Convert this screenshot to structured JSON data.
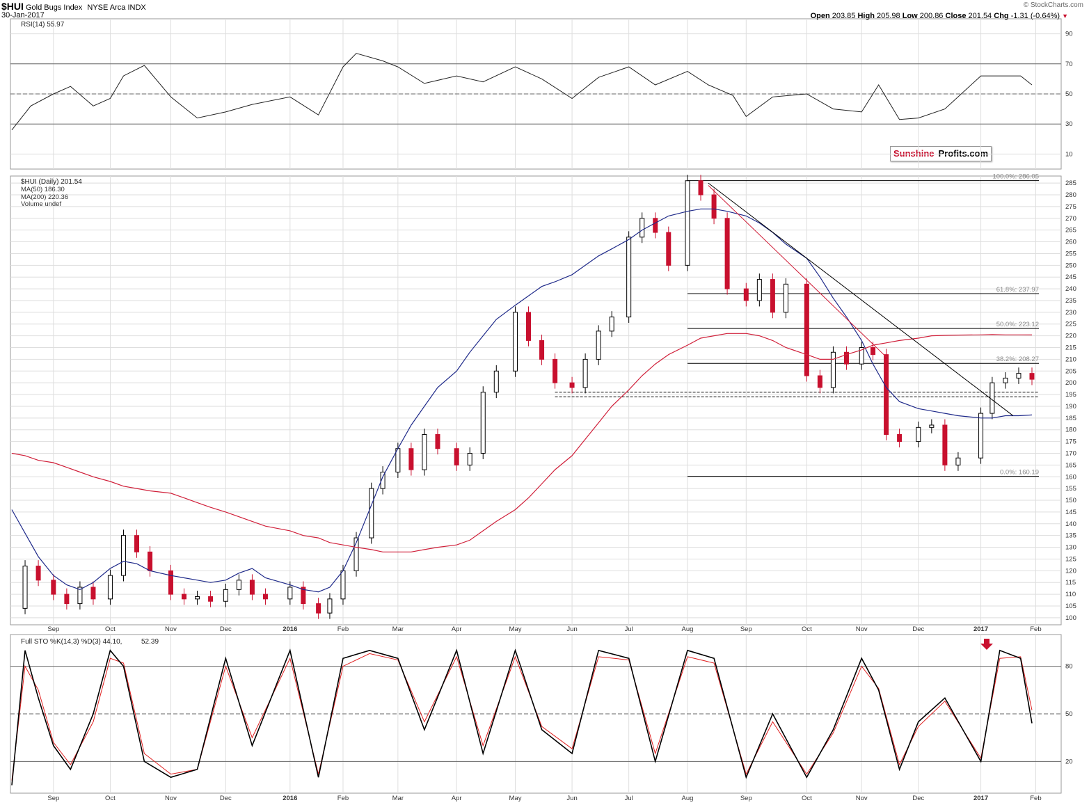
{
  "header": {
    "symbol": "$HUI",
    "name": "Gold Bugs Index",
    "exchange": "NYSE Arca",
    "type": "INDX",
    "date": "30-Jan-2017",
    "watermark": "© StockCharts.com",
    "open_label": "Open",
    "open": "203.85",
    "high_label": "High",
    "high": "205.98",
    "low_label": "Low",
    "low": "200.86",
    "close_label": "Close",
    "close": "201.54",
    "chg_label": "Chg",
    "chg": "-1.31 (-0.64%)"
  },
  "logo": {
    "part1": "Sunshine",
    "part2": "Profits.com"
  },
  "colors": {
    "up": "#000000",
    "down": "#c8102e",
    "ma50": "#1f2a8a",
    "ma200": "#d0203a",
    "grid": "#dedede",
    "stoch_d": "#e02020"
  },
  "chart_data": [
    {
      "type": "line",
      "panel": "rsi",
      "title": "RSI(14) 55.97",
      "ylim": [
        0,
        100
      ],
      "yticks": [
        10,
        30,
        50,
        70,
        90
      ],
      "reference_lines": [
        30,
        50,
        70
      ],
      "x": [
        "2015-08-10",
        "2015-08-20",
        "2015-09-01",
        "2015-09-10",
        "2015-09-22",
        "2015-10-01",
        "2015-10-08",
        "2015-10-19",
        "2015-11-02",
        "2015-11-16",
        "2015-12-01",
        "2015-12-15",
        "2016-01-04",
        "2016-01-19",
        "2016-02-01",
        "2016-02-08",
        "2016-02-22",
        "2016-03-01",
        "2016-03-15",
        "2016-04-01",
        "2016-04-15",
        "2016-05-02",
        "2016-05-16",
        "2016-06-01",
        "2016-06-15",
        "2016-07-01",
        "2016-07-15",
        "2016-08-01",
        "2016-08-12",
        "2016-08-25",
        "2016-09-01",
        "2016-09-15",
        "2016-10-03",
        "2016-10-17",
        "2016-11-01",
        "2016-11-10",
        "2016-11-21",
        "2016-12-01",
        "2016-12-15",
        "2017-01-03",
        "2017-01-13",
        "2017-01-24",
        "2017-01-30"
      ],
      "values": [
        26,
        42,
        50,
        55,
        42,
        47,
        62,
        69,
        48,
        34,
        38,
        43,
        48,
        36,
        68,
        77,
        72,
        68,
        57,
        62,
        58,
        68,
        60,
        47,
        61,
        68,
        56,
        65,
        56,
        49,
        35,
        48,
        50,
        40,
        38,
        56,
        33,
        34,
        40,
        62,
        62,
        62,
        56
      ]
    },
    {
      "type": "candlestick",
      "panel": "price",
      "title": "$HUI (Daily) 201.54",
      "legend": [
        "$HUI (Daily) 201.54",
        "MA(50) 186.30",
        "MA(200) 220.36",
        "Volume undef"
      ],
      "ylim": [
        97,
        288
      ],
      "yticks": [
        100,
        105,
        110,
        115,
        120,
        125,
        130,
        135,
        140,
        145,
        150,
        155,
        160,
        165,
        170,
        175,
        180,
        185,
        190,
        195,
        200,
        205,
        210,
        215,
        220,
        225,
        230,
        235,
        240,
        245,
        250,
        255,
        260,
        265,
        270,
        275,
        280,
        285
      ],
      "xlabels": [
        "Sep",
        "Oct",
        "Nov",
        "Dec",
        "2016",
        "Feb",
        "Mar",
        "Apr",
        "May",
        "Jun",
        "Jul",
        "Aug",
        "Sep",
        "Oct",
        "Nov",
        "Dec",
        "2017",
        "Feb"
      ],
      "x": [
        "2015-08-10",
        "2015-08-17",
        "2015-08-24",
        "2015-09-01",
        "2015-09-08",
        "2015-09-15",
        "2015-09-22",
        "2015-10-01",
        "2015-10-08",
        "2015-10-15",
        "2015-10-22",
        "2015-11-02",
        "2015-11-09",
        "2015-11-16",
        "2015-11-23",
        "2015-12-01",
        "2015-12-08",
        "2015-12-15",
        "2015-12-22",
        "2016-01-04",
        "2016-01-11",
        "2016-01-19",
        "2016-01-25",
        "2016-02-01",
        "2016-02-08",
        "2016-02-16",
        "2016-02-22",
        "2016-03-01",
        "2016-03-08",
        "2016-03-15",
        "2016-03-22",
        "2016-04-01",
        "2016-04-08",
        "2016-04-15",
        "2016-04-22",
        "2016-05-02",
        "2016-05-09",
        "2016-05-16",
        "2016-05-23",
        "2016-06-01",
        "2016-06-08",
        "2016-06-15",
        "2016-06-22",
        "2016-07-01",
        "2016-07-08",
        "2016-07-15",
        "2016-07-22",
        "2016-08-01",
        "2016-08-08",
        "2016-08-15",
        "2016-08-22",
        "2016-09-01",
        "2016-09-08",
        "2016-09-15",
        "2016-09-22",
        "2016-10-03",
        "2016-10-10",
        "2016-10-17",
        "2016-10-24",
        "2016-11-01",
        "2016-11-07",
        "2016-11-14",
        "2016-11-21",
        "2016-12-01",
        "2016-12-08",
        "2016-12-15",
        "2016-12-22",
        "2017-01-03",
        "2017-01-09",
        "2017-01-16",
        "2017-01-23",
        "2017-01-30"
      ],
      "close": [
        104,
        122,
        116,
        110,
        106,
        113,
        108,
        118,
        135,
        128,
        120,
        110,
        108,
        109,
        107,
        112,
        116,
        110,
        108,
        113,
        106,
        102,
        108,
        120,
        134,
        155,
        162,
        172,
        163,
        178,
        172,
        165,
        170,
        196,
        205,
        230,
        218,
        210,
        200,
        198,
        210,
        222,
        228,
        262,
        270,
        264,
        250,
        286,
        280,
        270,
        240,
        235,
        244,
        230,
        242,
        203,
        198,
        213,
        208,
        215,
        212,
        178,
        175,
        181,
        182,
        165,
        168,
        187,
        200,
        202,
        204,
        201.5
      ],
      "ma50": [
        146,
        136,
        126,
        118,
        114,
        112,
        115,
        121,
        124,
        123,
        120,
        118,
        117,
        116,
        115,
        116,
        119,
        121,
        117,
        114,
        112,
        111,
        113,
        120,
        132,
        148,
        160,
        172,
        182,
        190,
        198,
        205,
        213,
        220,
        227,
        233,
        237,
        241,
        243,
        246,
        250,
        254,
        257,
        261,
        265,
        268,
        271,
        273,
        274,
        274,
        273,
        271,
        268,
        264,
        259,
        253,
        245,
        236,
        228,
        218,
        208,
        198,
        192,
        189,
        188,
        187,
        186,
        185,
        185,
        186,
        186,
        186.3
      ],
      "ma200": [
        170,
        169,
        167,
        166,
        164,
        162,
        160,
        158,
        156,
        155,
        154,
        153,
        151,
        149,
        147,
        145,
        143,
        141,
        139,
        137,
        135,
        134,
        132,
        131,
        130,
        129,
        128,
        128,
        128,
        129,
        130,
        131,
        133,
        137,
        141,
        146,
        151,
        157,
        163,
        169,
        176,
        183,
        190,
        197,
        203,
        208,
        212,
        216,
        219,
        220,
        221,
        221,
        220,
        218,
        215,
        212,
        210,
        210,
        212,
        214,
        216,
        217,
        218,
        219,
        220,
        220.2,
        220.3,
        220.4,
        220.5,
        220.4,
        220.4,
        220.36
      ],
      "fibonacci": [
        {
          "label": "100.0%: 286.05",
          "value": 286.05
        },
        {
          "label": "61.8%: 237.97",
          "value": 237.97
        },
        {
          "label": "50.0%: 223.12",
          "value": 223.12
        },
        {
          "label": "38.2%: 208.27",
          "value": 208.27
        },
        {
          "label": "0.0%: 160.19",
          "value": 160.19
        }
      ],
      "support_dashed": [
        196,
        194
      ],
      "trendlines": [
        {
          "name": "black-resistance",
          "from": [
            "2016-08-12",
            285
          ],
          "to": [
            "2017-01-20",
            186
          ]
        },
        {
          "name": "red-resistance",
          "from": [
            "2016-08-12",
            284
          ],
          "to": [
            "2016-11-14",
            211
          ]
        }
      ]
    },
    {
      "type": "line",
      "panel": "stochastic",
      "title": "Full STO %K(14,3) %D(3) 44.10, 52.39",
      "title_k": "Full STO %K(14,3) %D(3) 44.10,",
      "title_d": "52.39",
      "ylim": [
        0,
        100
      ],
      "yticks": [
        20,
        50,
        80
      ],
      "reference_lines": [
        20,
        50,
        80
      ],
      "x": [
        "2015-08-10",
        "2015-08-17",
        "2015-08-24",
        "2015-09-01",
        "2015-09-10",
        "2015-09-22",
        "2015-10-01",
        "2015-10-08",
        "2015-10-19",
        "2015-11-02",
        "2015-11-16",
        "2015-12-01",
        "2015-12-15",
        "2016-01-04",
        "2016-01-19",
        "2016-02-01",
        "2016-02-15",
        "2016-03-01",
        "2016-03-15",
        "2016-04-01",
        "2016-04-15",
        "2016-05-02",
        "2016-05-16",
        "2016-06-01",
        "2016-06-15",
        "2016-07-01",
        "2016-07-15",
        "2016-08-01",
        "2016-08-15",
        "2016-09-01",
        "2016-09-15",
        "2016-10-03",
        "2016-10-17",
        "2016-11-01",
        "2016-11-10",
        "2016-11-21",
        "2016-12-01",
        "2016-12-15",
        "2017-01-03",
        "2017-01-13",
        "2017-01-24",
        "2017-01-30"
      ],
      "k": [
        5,
        90,
        60,
        30,
        15,
        50,
        90,
        80,
        20,
        10,
        15,
        85,
        30,
        90,
        10,
        85,
        90,
        85,
        40,
        90,
        25,
        90,
        40,
        25,
        90,
        85,
        20,
        90,
        85,
        10,
        50,
        10,
        40,
        85,
        65,
        15,
        45,
        60,
        20,
        90,
        85,
        44.1
      ],
      "d": [
        8,
        80,
        65,
        32,
        18,
        45,
        85,
        82,
        25,
        12,
        15,
        80,
        35,
        85,
        12,
        80,
        88,
        84,
        45,
        86,
        30,
        86,
        42,
        28,
        86,
        84,
        25,
        86,
        82,
        12,
        45,
        12,
        38,
        80,
        66,
        18,
        42,
        58,
        22,
        85,
        86,
        52.39
      ],
      "annotation": "down-arrow-2017-01-03"
    }
  ]
}
